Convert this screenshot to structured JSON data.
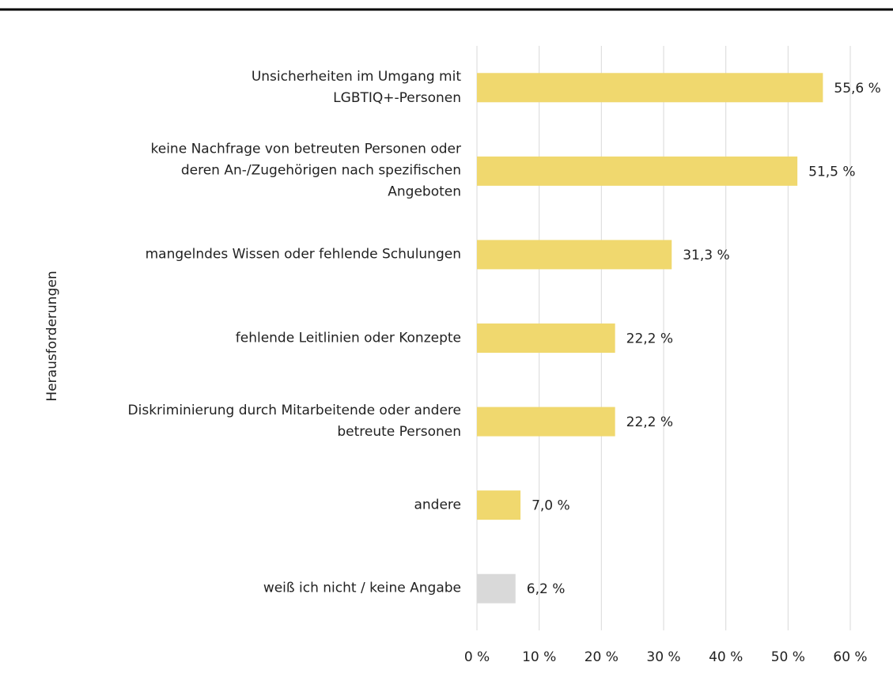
{
  "chart_data": {
    "type": "barh",
    "y_axis_label": "Herausforderungen",
    "categories": [
      "Unsicherheiten im Umgang mit\nLGBTIQ+-Personen",
      "keine Nachfrage von betreuten Personen oder\nderen An-/Zugehörigen nach spezifischen\nAngeboten",
      "mangelndes Wissen oder fehlende Schulungen",
      "fehlende Leitlinien oder Konzepte",
      "Diskriminierung durch Mitarbeitende oder andere\nbetreute Personen",
      "andere",
      "weiß ich nicht / keine Angabe"
    ],
    "values": [
      55.6,
      51.5,
      31.3,
      22.2,
      22.2,
      7.0,
      6.2
    ],
    "value_labels": [
      "55,6 %",
      "51,5 %",
      "31,3 %",
      "22,2 %",
      "22,2 %",
      "7,0 %",
      "6,2 %"
    ],
    "colors": [
      "#f0d86e",
      "#f0d86e",
      "#f0d86e",
      "#f0d86e",
      "#f0d86e",
      "#f0d86e",
      "#d9d9d9"
    ],
    "xlim": [
      0,
      60
    ],
    "xticks": [
      {
        "value": 0,
        "label": "0 %"
      },
      {
        "value": 10,
        "label": "10 %"
      },
      {
        "value": 20,
        "label": "20 %"
      },
      {
        "value": 30,
        "label": "30 %"
      },
      {
        "value": 40,
        "label": "40 %"
      },
      {
        "value": 50,
        "label": "50 %"
      },
      {
        "value": 60,
        "label": "60 %"
      }
    ],
    "grid": true
  }
}
